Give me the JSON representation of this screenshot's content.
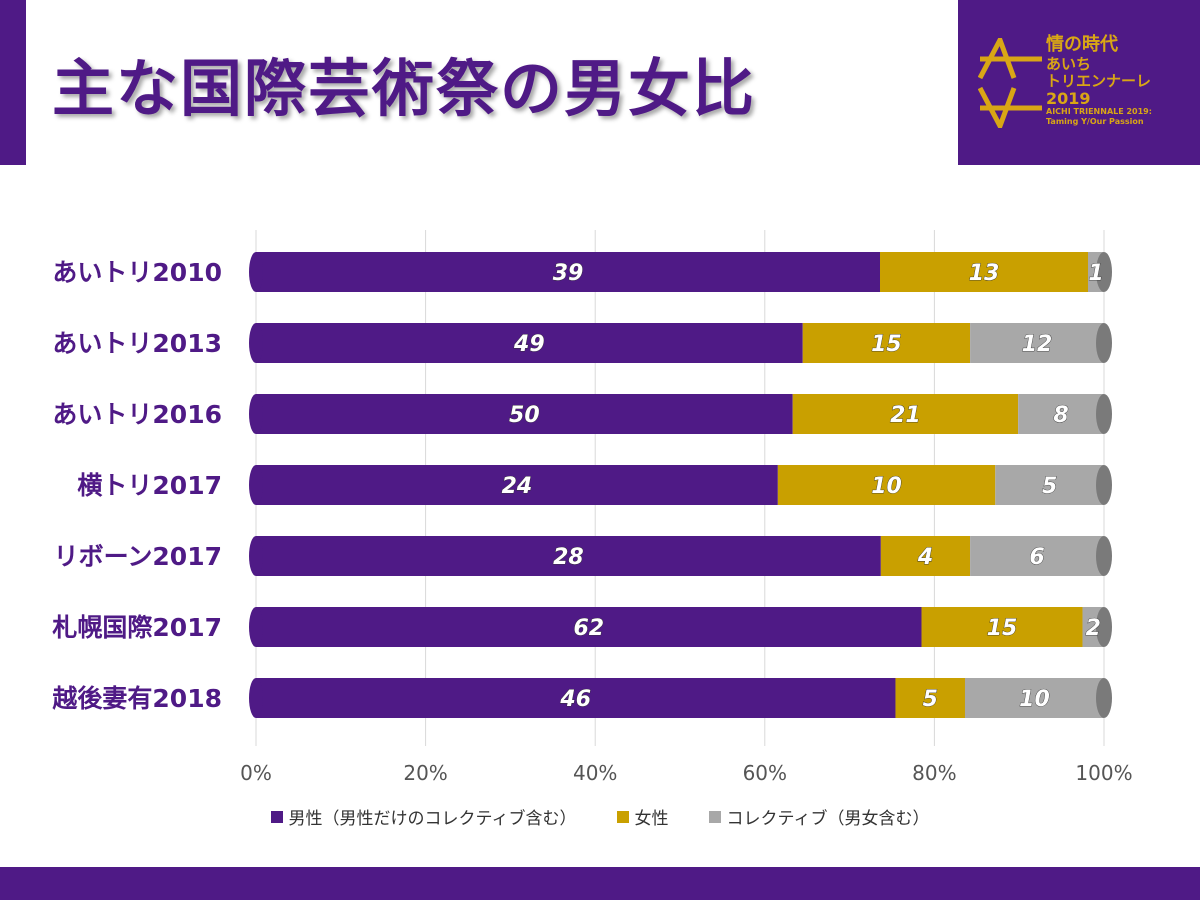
{
  "title": "主な国際芸術祭の男女比",
  "logo": {
    "line1": "情の時代",
    "line2": "あいち",
    "line3": "トリエンナーレ",
    "line4": "2019",
    "line5": "AICHI TRIENNALE 2019:",
    "line6": "Taming Y/Our Passion"
  },
  "colors": {
    "male": "#4f1a86",
    "female": "#c9a000",
    "collective": "#a8a8a8",
    "label": "#4f1a86"
  },
  "chart_data": {
    "type": "bar",
    "orientation": "horizontal",
    "stacked": "percent",
    "categories": [
      "あいトリ2010",
      "あいトリ2013",
      "あいトリ2016",
      "横トリ2017",
      "リボーン2017",
      "札幌国際2017",
      "越後妻有2018"
    ],
    "series": [
      {
        "name": "男性（男性だけのコレクティブ含む）",
        "values": [
          39,
          49,
          50,
          24,
          28,
          62,
          46
        ]
      },
      {
        "name": "女性",
        "values": [
          13,
          15,
          21,
          10,
          4,
          15,
          5
        ]
      },
      {
        "name": "コレクティブ（男女含む）",
        "values": [
          1,
          12,
          8,
          5,
          6,
          2,
          10
        ]
      }
    ],
    "xticks": [
      "0%",
      "20%",
      "40%",
      "60%",
      "80%",
      "100%"
    ],
    "xlim": [
      0,
      100
    ],
    "grid": true,
    "legend": "bottom"
  }
}
